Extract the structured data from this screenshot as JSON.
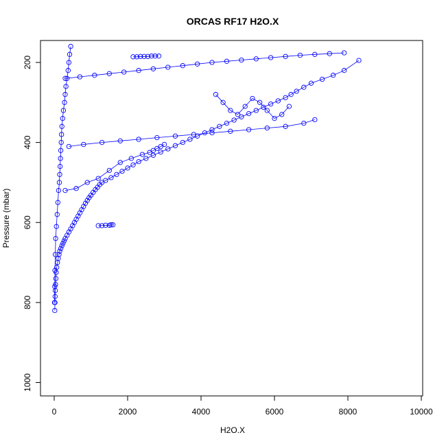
{
  "chart_data": {
    "type": "scatter",
    "title": "ORCAS RF17 H2O.X",
    "xlabel": "H2O.X",
    "ylabel": "Pressure (mbar)",
    "xlim": [
      0,
      10000
    ],
    "ylim": [
      1000,
      150
    ],
    "y_reversed": true,
    "xticks": [
      0,
      2000,
      4000,
      6000,
      8000,
      10000
    ],
    "yticks": [
      200,
      400,
      600,
      800,
      1000
    ],
    "marker": "open-circle",
    "color": "#0000ff",
    "series": [
      {
        "x": [
          15,
          20,
          25,
          30,
          35,
          45,
          55,
          70,
          90,
          110,
          130,
          150,
          180,
          210,
          240,
          270,
          300,
          350,
          400,
          450,
          500,
          550,
          600,
          650,
          700,
          750,
          800,
          850,
          900,
          950,
          1000,
          1060,
          1120,
          1180,
          1240,
          1300,
          1400,
          1550,
          1700,
          1850,
          2000,
          2150,
          2300,
          2500,
          2700,
          2900,
          3100,
          3300,
          3500,
          3700,
          3900,
          4100,
          4300,
          4500,
          4700,
          4900,
          5100,
          5300,
          5500,
          5700,
          5900,
          6100,
          6300,
          6450,
          6600,
          6800,
          7000,
          7300,
          7600,
          7900,
          8300
        ],
        "y": [
          820,
          800,
          785,
          770,
          755,
          740,
          725,
          712,
          700,
          690,
          680,
          672,
          665,
          658,
          652,
          646,
          640,
          632,
          624,
          616,
          608,
          600,
          592,
          584,
          576,
          568,
          560,
          552,
          545,
          538,
          532,
          525,
          518,
          512,
          505,
          500,
          495,
          488,
          480,
          472,
          464,
          456,
          448,
          440,
          432,
          424,
          416,
          408,
          400,
          392,
          384,
          376,
          368,
          360,
          352,
          344,
          336,
          328,
          320,
          312,
          304,
          296,
          288,
          280,
          272,
          262,
          252,
          242,
          232,
          220,
          195
        ]
      },
      {
        "x": [
          10,
          15,
          20,
          30,
          40,
          60,
          80,
          100,
          120,
          140,
          150,
          160,
          170,
          180,
          190,
          200,
          210,
          230,
          250,
          280,
          300,
          320,
          350,
          380,
          400,
          420,
          450
        ],
        "y": [
          800,
          760,
          720,
          680,
          640,
          610,
          580,
          550,
          520,
          500,
          480,
          460,
          440,
          420,
          400,
          380,
          360,
          340,
          320,
          300,
          280,
          260,
          240,
          220,
          200,
          180,
          160
        ]
      },
      {
        "x": [
          300,
          600,
          900,
          1200,
          1500,
          1800,
          2100,
          2400,
          2600,
          2700,
          2800,
          2900,
          3000
        ],
        "y": [
          520,
          515,
          500,
          490,
          470,
          450,
          440,
          430,
          425,
          420,
          415,
          410,
          405
        ]
      },
      {
        "x": [
          400,
          800,
          1300,
          1800,
          2300,
          2800,
          3300,
          3800,
          4300,
          4800,
          5300,
          5800,
          6300,
          6800,
          7100
        ],
        "y": [
          410,
          405,
          400,
          396,
          392,
          388,
          384,
          380,
          376,
          372,
          368,
          364,
          360,
          352,
          343
        ]
      },
      {
        "x": [
          300,
          700,
          1100,
          1500,
          1900,
          2300,
          2700,
          3100,
          3500,
          3900,
          4300,
          4700,
          5100,
          5500,
          5900,
          6300,
          6700,
          7100,
          7500,
          7900
        ],
        "y": [
          240,
          236,
          232,
          228,
          224,
          220,
          216,
          212,
          208,
          204,
          200,
          197,
          194,
          191,
          188,
          185,
          182,
          180,
          178,
          176
        ]
      },
      {
        "x": [
          1200,
          1300,
          1400,
          1500,
          1550,
          1600
        ],
        "y": [
          608,
          608,
          607,
          607,
          606,
          606
        ]
      },
      {
        "x": [
          2150,
          2250,
          2350,
          2450,
          2550,
          2650,
          2750,
          2850
        ],
        "y": [
          186,
          186,
          185,
          185,
          185,
          184,
          184,
          184
        ]
      },
      {
        "x": [
          4400,
          4600,
          4800,
          5000,
          5200,
          5400,
          5600,
          5800,
          6000,
          6200,
          6400
        ],
        "y": [
          280,
          300,
          320,
          330,
          310,
          290,
          300,
          320,
          340,
          330,
          310
        ]
      }
    ]
  }
}
